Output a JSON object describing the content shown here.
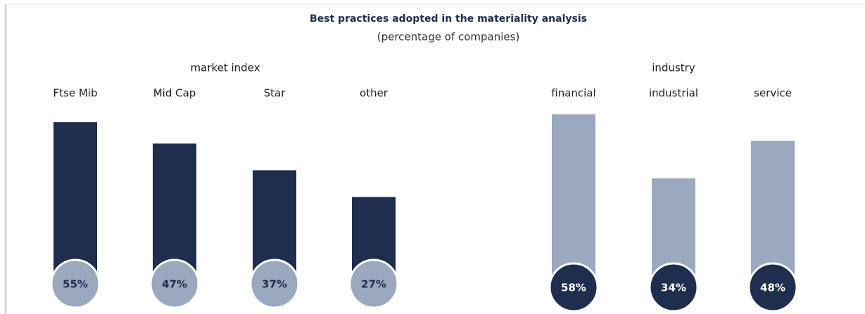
{
  "title": "Best practices  adopted in the materiality analysis",
  "subtitle": "(percentage  of companies)",
  "chart_data": [
    {
      "type": "bar",
      "title": "market index",
      "categories": [
        "Ftse Mib",
        "Mid Cap",
        "Star",
        "other"
      ],
      "values": [
        55,
        47,
        37,
        27
      ],
      "value_labels": [
        "55%",
        "47%",
        "37%",
        "27%"
      ],
      "color": "#1f2d4e",
      "label_color": "#9aa9bd"
    },
    {
      "type": "bar",
      "title": "industry",
      "categories": [
        "financial",
        "industrial",
        "service"
      ],
      "values": [
        58,
        34,
        48
      ],
      "value_labels": [
        "58%",
        "34%",
        "48%"
      ],
      "color": "#9aa9bd",
      "label_color": "#1f2d4e"
    }
  ]
}
